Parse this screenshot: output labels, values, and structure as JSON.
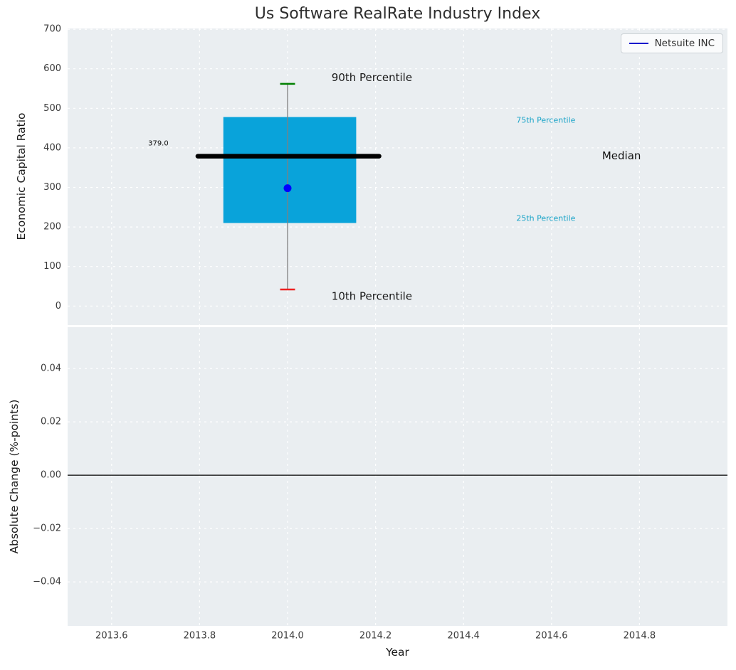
{
  "title": "Us Software RealRate Industry Index",
  "legend": {
    "label": "Netsuite INC",
    "line_color": "#0000cc"
  },
  "style": {
    "panel_bg": "#eaeef1",
    "grid_color": "#ffffff"
  },
  "chart_data": [
    {
      "type": "boxplot",
      "ylabel": "Economic Capital Ratio",
      "xlim": [
        2013.5,
        2015.0
      ],
      "ylim": [
        -48,
        702
      ],
      "ytick_values": [
        0,
        100,
        200,
        300,
        400,
        500,
        600,
        700
      ],
      "ytick_labels": [
        "0",
        "100",
        "200",
        "300",
        "400",
        "500",
        "600",
        "700"
      ],
      "grid": "dashed-white",
      "legend_position": "upper right",
      "box": {
        "x": 2014.0,
        "box_left": 2013.854,
        "box_right": 2014.156,
        "median_left": 2013.796,
        "median_right": 2014.208,
        "cap_halfwidth": 0.017,
        "p10": 42,
        "p25": 210,
        "median": 379,
        "p75": 478,
        "p90": 562,
        "box_color": "#09a3da",
        "median_color": "#000000",
        "whisker_color": "#808080",
        "cap_top_color": "#008000",
        "cap_bottom_color": "#ee2222"
      },
      "point": {
        "x": 2014.0,
        "y": 298,
        "color": "#0000ff",
        "series": "Netsuite INC"
      },
      "annotations": [
        {
          "text": "90th Percentile",
          "x": 2014.1,
          "y": 578,
          "color": "#1a1a1a",
          "size": 15
        },
        {
          "text": "10th Percentile",
          "x": 2014.1,
          "y": 25,
          "color": "#1a1a1a",
          "size": 15
        },
        {
          "text": "75th Percentile",
          "x": 2014.52,
          "y": 470,
          "color": "#1ba4c8",
          "size": 11
        },
        {
          "text": "25th Percentile",
          "x": 2014.52,
          "y": 222,
          "color": "#1ba4c8",
          "size": 11
        },
        {
          "text": "Median",
          "x": 2014.715,
          "y": 380,
          "color": "#111111",
          "size": 15
        },
        {
          "text": "379.0",
          "x": 2013.683,
          "y": 411,
          "color": "#111111",
          "size": 10
        }
      ]
    },
    {
      "type": "line",
      "ylabel": "Absolute Change (%-points)",
      "xlabel": "Year",
      "xlim": [
        2013.5,
        2015.0
      ],
      "ylim": [
        -0.0565,
        0.0555
      ],
      "ytick_values": [
        0.04,
        0.02,
        0.0,
        -0.02,
        -0.04
      ],
      "ytick_labels": [
        "0.04",
        "0.02",
        "0.00",
        "−0.02",
        "−0.04"
      ],
      "xtick_values": [
        2013.6,
        2013.8,
        2014.0,
        2014.2,
        2014.4,
        2014.6,
        2014.8
      ],
      "xtick_labels": [
        "2013.6",
        "2013.8",
        "2014.0",
        "2014.2",
        "2014.4",
        "2014.6",
        "2014.8"
      ],
      "zero_line": 0.0,
      "series": []
    }
  ]
}
